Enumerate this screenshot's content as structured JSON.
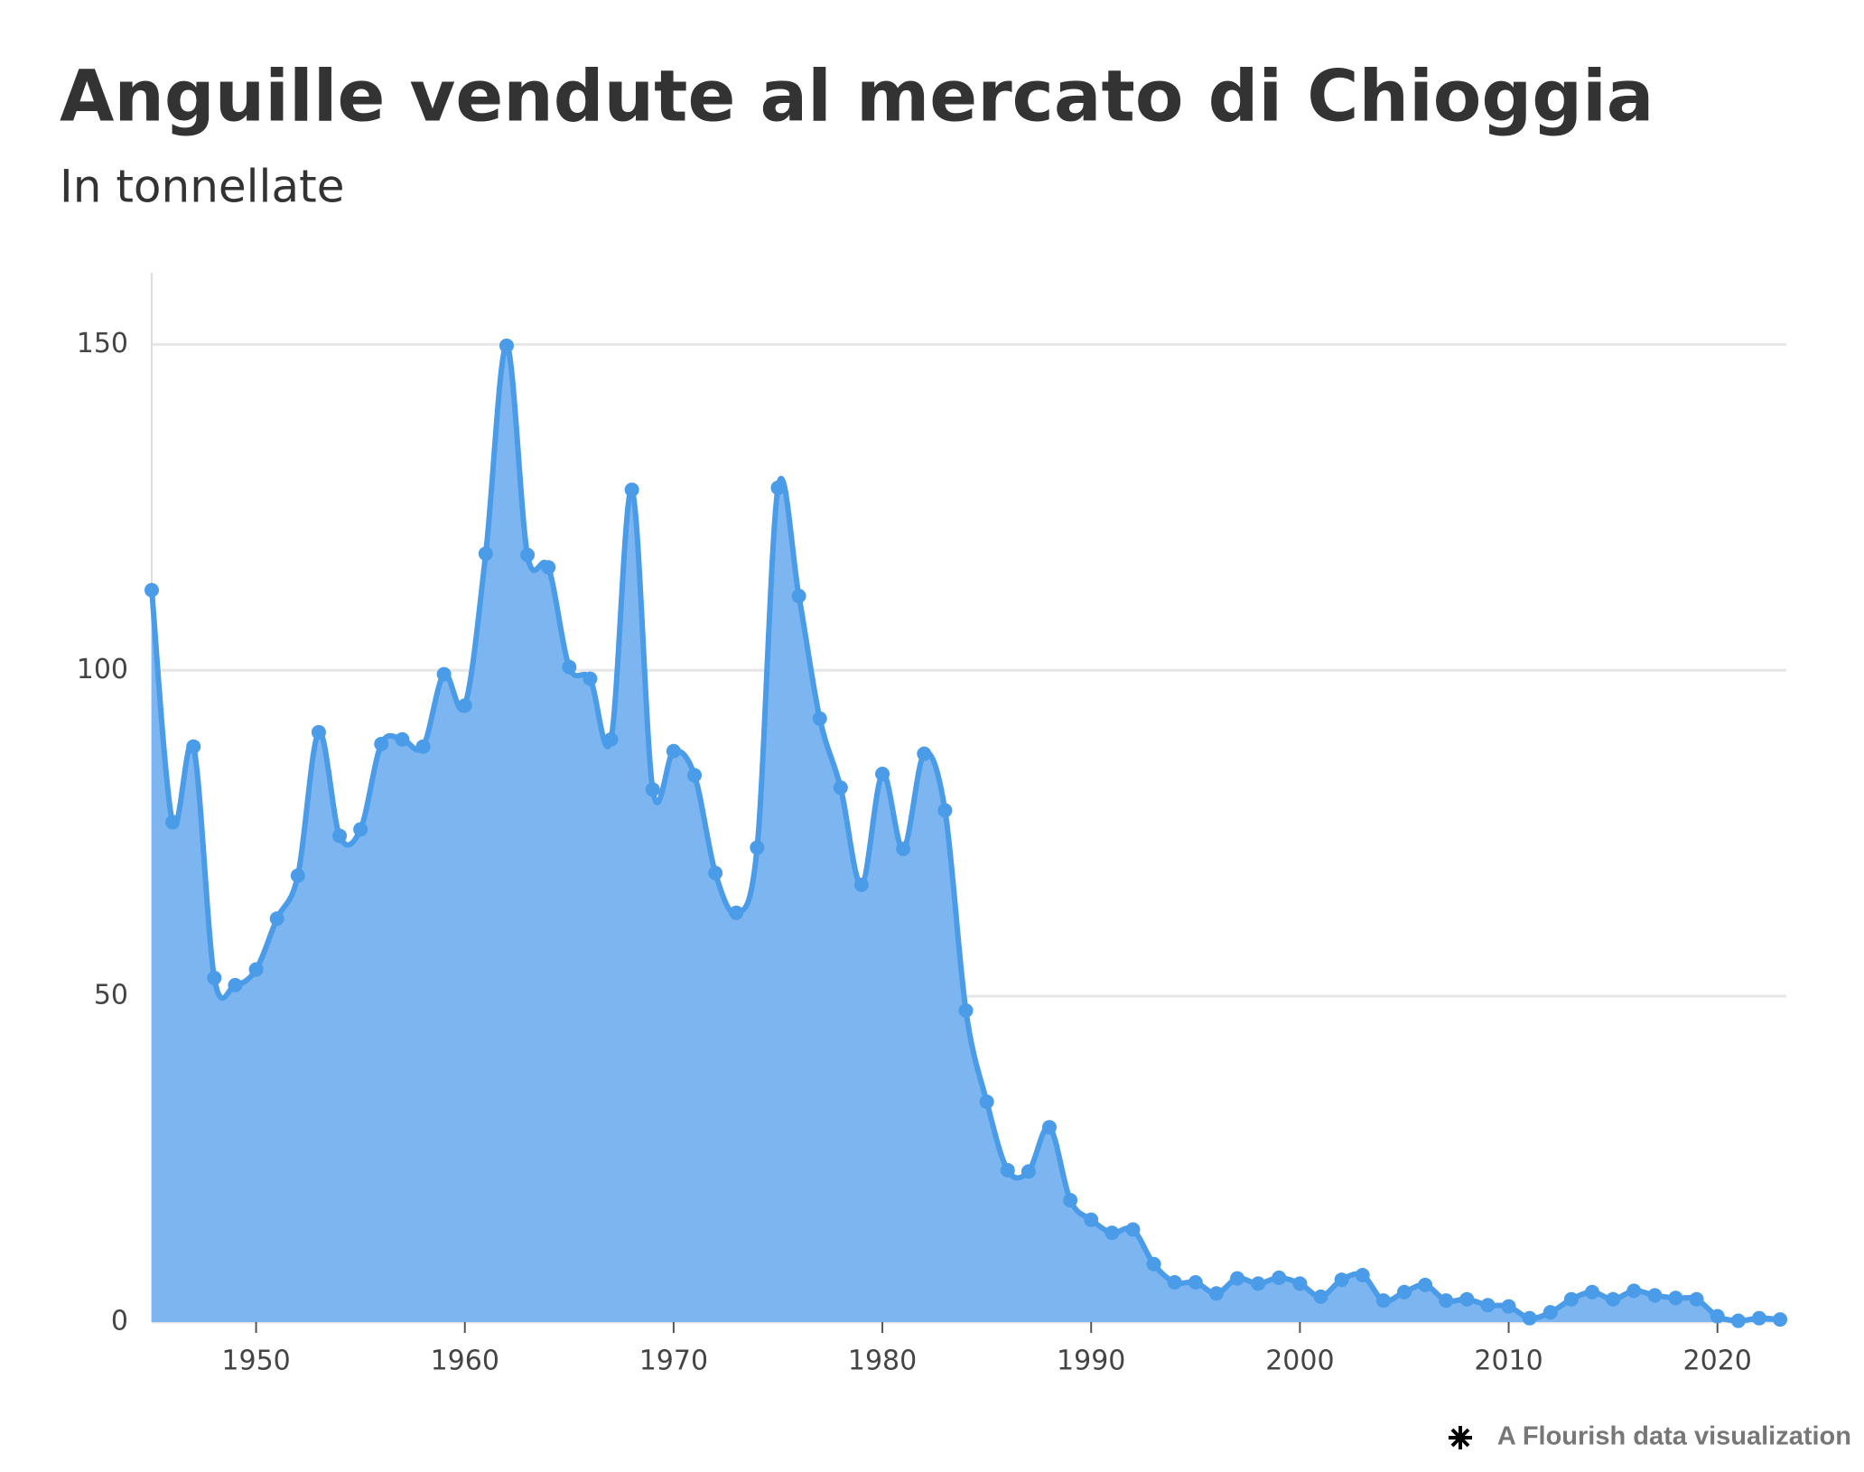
{
  "chart_data": {
    "type": "area",
    "title": "Anguille vendute al mercato di Chioggia",
    "subtitle": "In tonnellate",
    "footer": "A Flourish data visualization",
    "x": [
      1945,
      1946,
      1947,
      1948,
      1949,
      1950,
      1951,
      1952,
      1953,
      1954,
      1955,
      1956,
      1957,
      1958,
      1959,
      1960,
      1961,
      1962,
      1963,
      1964,
      1965,
      1966,
      1967,
      1968,
      1969,
      1970,
      1971,
      1972,
      1973,
      1974,
      1975,
      1976,
      1977,
      1978,
      1979,
      1980,
      1981,
      1982,
      1983,
      1984,
      1985,
      1986,
      1987,
      1988,
      1989,
      1990,
      1991,
      1992,
      1993,
      1994,
      1995,
      1996,
      1997,
      1998,
      1999,
      2000,
      2001,
      2002,
      2003,
      2004,
      2005,
      2006,
      2007,
      2008,
      2009,
      2010,
      2011,
      2012,
      2013,
      2014,
      2015,
      2016,
      2017,
      2018,
      2019,
      2020,
      2021,
      2022,
      2023
    ],
    "values": [
      112.3,
      76.7,
      88.3,
      52.8,
      51.7,
      54.1,
      61.9,
      68.5,
      90.5,
      74.6,
      75.6,
      88.7,
      89.4,
      88.3,
      99.4,
      94.6,
      117.9,
      149.8,
      117.7,
      115.8,
      100.5,
      98.7,
      89.4,
      127.7,
      81.7,
      87.6,
      83.9,
      68.9,
      62.8,
      72.8,
      128.0,
      111.4,
      92.6,
      82.0,
      67.1,
      84.1,
      72.6,
      87.2,
      78.5,
      47.8,
      33.8,
      23.3,
      23.1,
      29.9,
      18.7,
      15.7,
      13.7,
      14.2,
      8.9,
      6.1,
      6.1,
      4.4,
      6.7,
      5.9,
      6.8,
      5.9,
      3.9,
      6.5,
      7.2,
      3.3,
      4.6,
      5.7,
      3.3,
      3.5,
      2.6,
      2.4,
      0.6,
      1.5,
      3.5,
      4.6,
      3.5,
      4.8,
      4.1,
      3.7,
      3.5,
      0.9,
      0.2,
      0.6,
      0.4
    ],
    "line_color": "#4a9be8",
    "fill_color": "#7cb5ef",
    "xlim": [
      1945,
      2023.3
    ],
    "xticks": [
      1950,
      1960,
      1970,
      1980,
      1990,
      2000,
      2010,
      2020
    ],
    "ylim": [
      0,
      161
    ],
    "yticks": [
      0,
      50,
      100,
      150
    ],
    "grid": true
  }
}
